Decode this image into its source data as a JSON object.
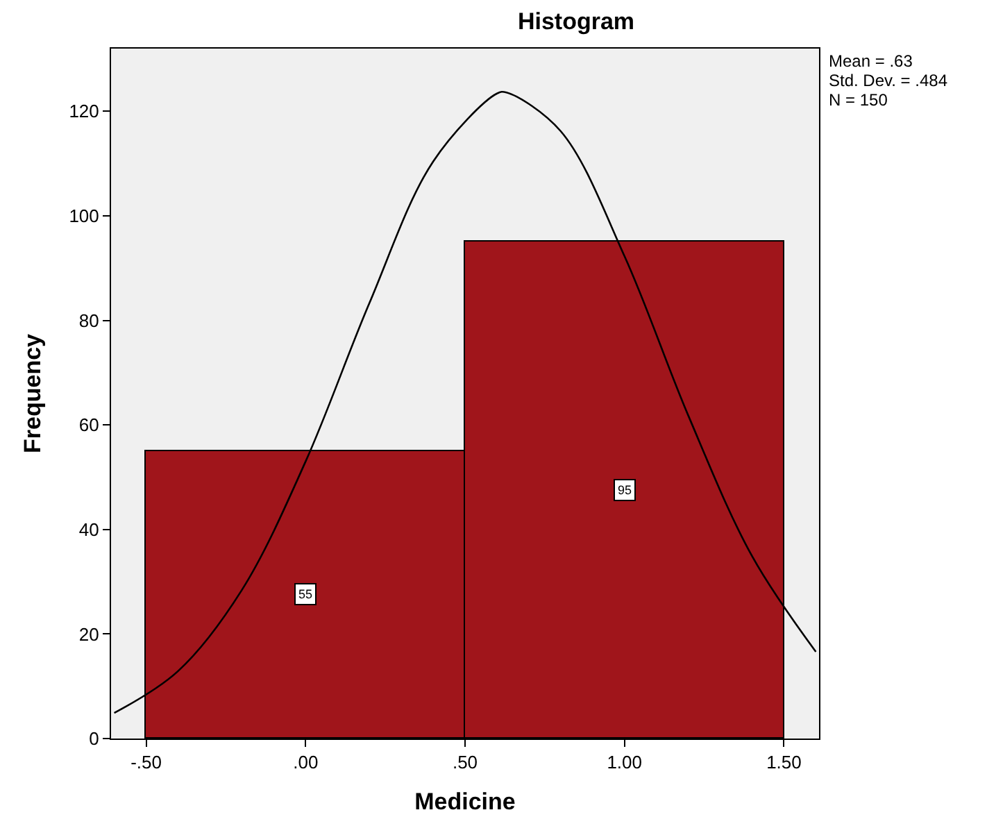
{
  "chart_data": {
    "type": "histogram",
    "title": "Histogram",
    "xlabel": "Medicine",
    "ylabel": "Frequency",
    "bins": [
      -0.5,
      0.5,
      1.5
    ],
    "values": [
      55,
      95
    ],
    "color": "#a0151b",
    "value_labels": [
      "55",
      "95"
    ],
    "series": [
      {
        "type": "line",
        "color": "#000000",
        "x": [
          -0.6,
          -0.4,
          -0.2,
          0,
          0.2,
          0.4,
          0.6,
          0.63,
          0.8,
          1.0,
          1.2,
          1.4,
          1.6
        ],
        "values": [
          4.9,
          12.9,
          28.4,
          53.0,
          83.3,
          110.4,
          123.4,
          123.6,
          116.2,
          92.3,
          61.8,
          34.9,
          16.6
        ]
      }
    ],
    "xlim": [
      -0.61,
      1.61
    ],
    "xticks": [
      {
        "value": -0.5,
        "label": "-.50"
      },
      {
        "value": 0,
        "label": ".00"
      },
      {
        "value": 0.5,
        "label": ".50"
      },
      {
        "value": 1,
        "label": "1.00"
      },
      {
        "value": 1.5,
        "label": "1.50"
      }
    ],
    "ylim": [
      0,
      132
    ],
    "yticks": [
      0,
      20,
      40,
      60,
      80,
      100,
      120
    ],
    "grid": false,
    "annotations": [
      "Mean = .63",
      "Std. Dev. = .484",
      "N = 150"
    ]
  }
}
